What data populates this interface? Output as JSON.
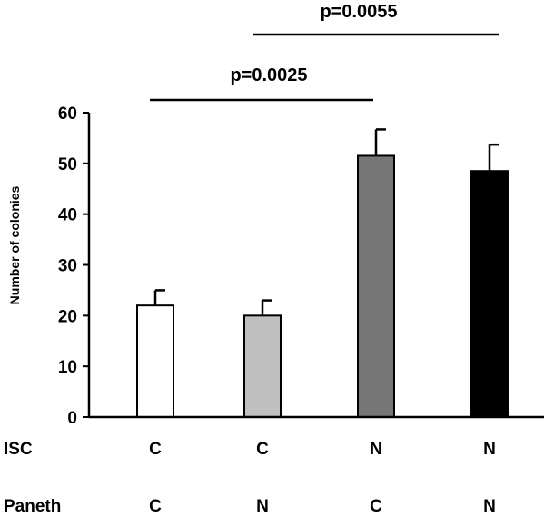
{
  "chart_data": {
    "type": "bar",
    "title": "",
    "ylabel": "Number of colonies",
    "ylim": [
      0,
      60
    ],
    "yticks": [
      0,
      10,
      20,
      30,
      40,
      50,
      60
    ],
    "grid": false,
    "categories": [
      {
        "isc": "C",
        "paneth": "C"
      },
      {
        "isc": "C",
        "paneth": "N"
      },
      {
        "isc": "N",
        "paneth": "C"
      },
      {
        "isc": "N",
        "paneth": "N"
      }
    ],
    "row_labels": {
      "isc": "ISC",
      "paneth": "Paneth"
    },
    "values": [
      22,
      20,
      51.5,
      48.5
    ],
    "errors": [
      3,
      3,
      5.2,
      5.2
    ],
    "colors": [
      "#ffffff",
      "#c0c0c0",
      "#767676",
      "#000000"
    ],
    "annotations": [
      {
        "label": "p=0.0025",
        "from": 0,
        "to": 2
      },
      {
        "label": "p=0.0055",
        "from": 1,
        "to": 3
      }
    ]
  }
}
